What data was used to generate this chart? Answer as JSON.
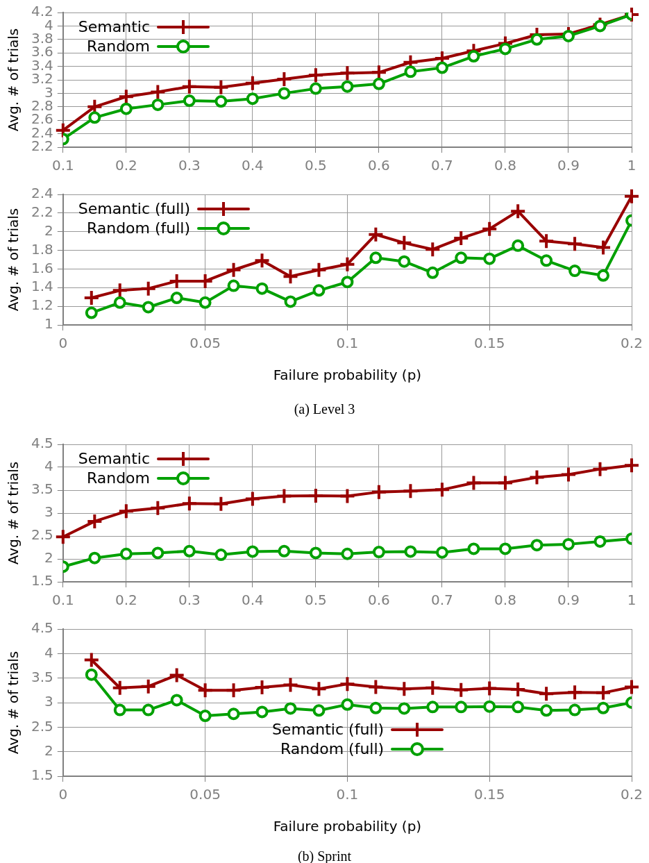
{
  "chart_data": [
    {
      "type": "line",
      "ylabel": "Avg. # of trials",
      "x": [
        0.1,
        0.15,
        0.2,
        0.25,
        0.3,
        0.35,
        0.4,
        0.45,
        0.5,
        0.55,
        0.6,
        0.65,
        0.7,
        0.75,
        0.8,
        0.85,
        0.9,
        0.95,
        1
      ],
      "series": [
        {
          "name": "Semantic",
          "color": "#990000",
          "marker": "cross",
          "values": [
            2.45,
            2.8,
            2.95,
            3.02,
            3.1,
            3.09,
            3.15,
            3.21,
            3.27,
            3.3,
            3.31,
            3.46,
            3.52,
            3.63,
            3.74,
            3.87,
            3.88,
            4.02,
            4.17
          ]
        },
        {
          "name": "Random",
          "color": "#00a000",
          "marker": "circle",
          "values": [
            2.32,
            2.64,
            2.77,
            2.83,
            2.89,
            2.88,
            2.92,
            3.0,
            3.07,
            3.1,
            3.14,
            3.32,
            3.38,
            3.55,
            3.66,
            3.8,
            3.85,
            4.0,
            4.17
          ]
        }
      ],
      "xlim": [
        0.1,
        1
      ],
      "xticks": [
        0.1,
        0.2,
        0.3,
        0.4,
        0.5,
        0.6,
        0.7,
        0.8,
        0.9,
        1
      ],
      "ylim": [
        2.2,
        4.2
      ],
      "yticks": [
        2.2,
        2.4,
        2.6,
        2.8,
        3,
        3.2,
        3.4,
        3.6,
        3.8,
        4,
        4.2
      ],
      "grid": true,
      "legend": "top left",
      "line_style": "solid"
    },
    {
      "type": "line",
      "xlabel": "Failure probability (p)",
      "ylabel": "Avg. # of trials",
      "annotations": [
        "(a)  Level 3"
      ],
      "x": [
        0.01,
        0.02,
        0.03,
        0.04,
        0.05,
        0.06,
        0.07,
        0.08,
        0.09,
        0.1,
        0.11,
        0.12,
        0.13,
        0.14,
        0.15,
        0.16,
        0.17,
        0.18,
        0.19,
        0.2
      ],
      "series": [
        {
          "name": "Semantic (full)",
          "color": "#990000",
          "marker": "cross",
          "values": [
            1.29,
            1.37,
            1.39,
            1.47,
            1.47,
            1.59,
            1.69,
            1.52,
            1.59,
            1.65,
            1.97,
            1.88,
            1.81,
            1.93,
            2.03,
            2.22,
            1.9,
            1.87,
            1.83,
            2.38
          ]
        },
        {
          "name": "Random (full)",
          "color": "#00a000",
          "marker": "circle",
          "values": [
            1.13,
            1.24,
            1.19,
            1.29,
            1.24,
            1.42,
            1.39,
            1.25,
            1.37,
            1.46,
            1.72,
            1.68,
            1.56,
            1.72,
            1.71,
            1.85,
            1.69,
            1.58,
            1.53,
            2.12
          ]
        }
      ],
      "xlim": [
        0,
        0.2
      ],
      "xticks": [
        0,
        0.05,
        0.1,
        0.15,
        0.2
      ],
      "ylim": [
        1,
        2.4
      ],
      "yticks": [
        1,
        1.2,
        1.4,
        1.6,
        1.8,
        2,
        2.2,
        2.4
      ],
      "grid": true,
      "legend": "top left",
      "line_style": "solid"
    },
    {
      "type": "line",
      "ylabel": "Avg. # of trials",
      "x": [
        0.1,
        0.15,
        0.2,
        0.25,
        0.3,
        0.35,
        0.4,
        0.45,
        0.5,
        0.55,
        0.6,
        0.65,
        0.7,
        0.75,
        0.8,
        0.85,
        0.9,
        0.95,
        1
      ],
      "series": [
        {
          "name": "Semantic",
          "color": "#990000",
          "marker": "cross",
          "values": [
            2.48,
            2.82,
            3.04,
            3.11,
            3.21,
            3.2,
            3.31,
            3.37,
            3.38,
            3.37,
            3.46,
            3.48,
            3.51,
            3.66,
            3.66,
            3.78,
            3.84,
            3.96,
            4.04
          ]
        },
        {
          "name": "Random",
          "color": "#00a000",
          "marker": "circle",
          "values": [
            1.83,
            2.02,
            2.11,
            2.13,
            2.17,
            2.09,
            2.16,
            2.17,
            2.13,
            2.11,
            2.15,
            2.16,
            2.14,
            2.22,
            2.22,
            2.3,
            2.32,
            2.38,
            2.44
          ]
        }
      ],
      "xlim": [
        0.1,
        1
      ],
      "xticks": [
        0.1,
        0.2,
        0.3,
        0.4,
        0.5,
        0.6,
        0.7,
        0.8,
        0.9,
        1
      ],
      "ylim": [
        1.5,
        4.5
      ],
      "yticks": [
        1.5,
        2,
        2.5,
        3,
        3.5,
        4,
        4.5
      ],
      "grid": true,
      "legend": "top left",
      "line_style": "solid"
    },
    {
      "type": "line",
      "xlabel": "Failure probability (p)",
      "ylabel": "Avg. # of trials",
      "annotations": [
        "(b)  Sprint"
      ],
      "x": [
        0.01,
        0.02,
        0.03,
        0.04,
        0.05,
        0.06,
        0.07,
        0.08,
        0.09,
        0.1,
        0.11,
        0.12,
        0.13,
        0.14,
        0.15,
        0.16,
        0.17,
        0.18,
        0.19,
        0.2
      ],
      "series": [
        {
          "name": "Semantic (full)",
          "color": "#990000",
          "marker": "cross",
          "values": [
            3.87,
            3.3,
            3.33,
            3.56,
            3.25,
            3.25,
            3.31,
            3.36,
            3.28,
            3.38,
            3.32,
            3.28,
            3.3,
            3.26,
            3.29,
            3.27,
            3.18,
            3.21,
            3.2,
            3.32
          ]
        },
        {
          "name": "Random (full)",
          "color": "#00a000",
          "marker": "circle",
          "values": [
            3.57,
            2.85,
            2.85,
            3.05,
            2.73,
            2.77,
            2.81,
            2.88,
            2.84,
            2.96,
            2.89,
            2.88,
            2.91,
            2.91,
            2.92,
            2.91,
            2.84,
            2.85,
            2.89,
            3.0
          ]
        }
      ],
      "xlim": [
        0,
        0.2
      ],
      "xticks": [
        0,
        0.05,
        0.1,
        0.15,
        0.2
      ],
      "ylim": [
        1.5,
        4.5
      ],
      "yticks": [
        1.5,
        2,
        2.5,
        3,
        3.5,
        4,
        4.5
      ],
      "grid": true,
      "legend": "bottom",
      "line_style": "solid"
    }
  ]
}
